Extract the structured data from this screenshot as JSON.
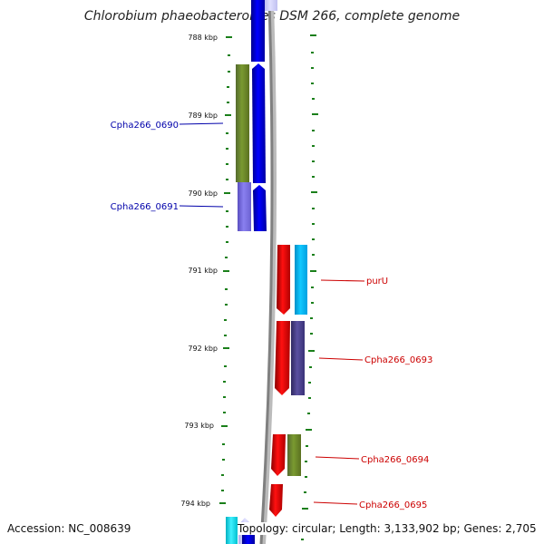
{
  "title": "Chlorobium phaeobacteroides DSM 266, complete genome",
  "footer": {
    "accession": "Accession: NC_008639",
    "topology": "Topology: circular; Length: 3,133,902 bp; Genes: 2,705"
  },
  "scale_labels": [
    "788 kbp",
    "789 kbp",
    "790 kbp",
    "791 kbp",
    "792 kbp",
    "793 kbp",
    "794 kbp"
  ],
  "gene_labels": {
    "left": [
      "Cpha266_0690",
      "Cpha266_0691"
    ],
    "right": [
      "purU",
      "Cpha266_0693",
      "Cpha266_0694",
      "Cpha266_0695"
    ]
  },
  "colors": {
    "scale_ticks": "#1a7f1a",
    "backbone": "#808080",
    "forward_strand": "#0000ee",
    "reverse_strand": "#ee0000",
    "cog_olive": "#6b8e23",
    "cog_lavender": "#7b68ee",
    "cog_skyblue": "#00bfff",
    "cog_slate": "#483d8b",
    "left_label": "#0000aa",
    "right_label": "#cc0000"
  }
}
